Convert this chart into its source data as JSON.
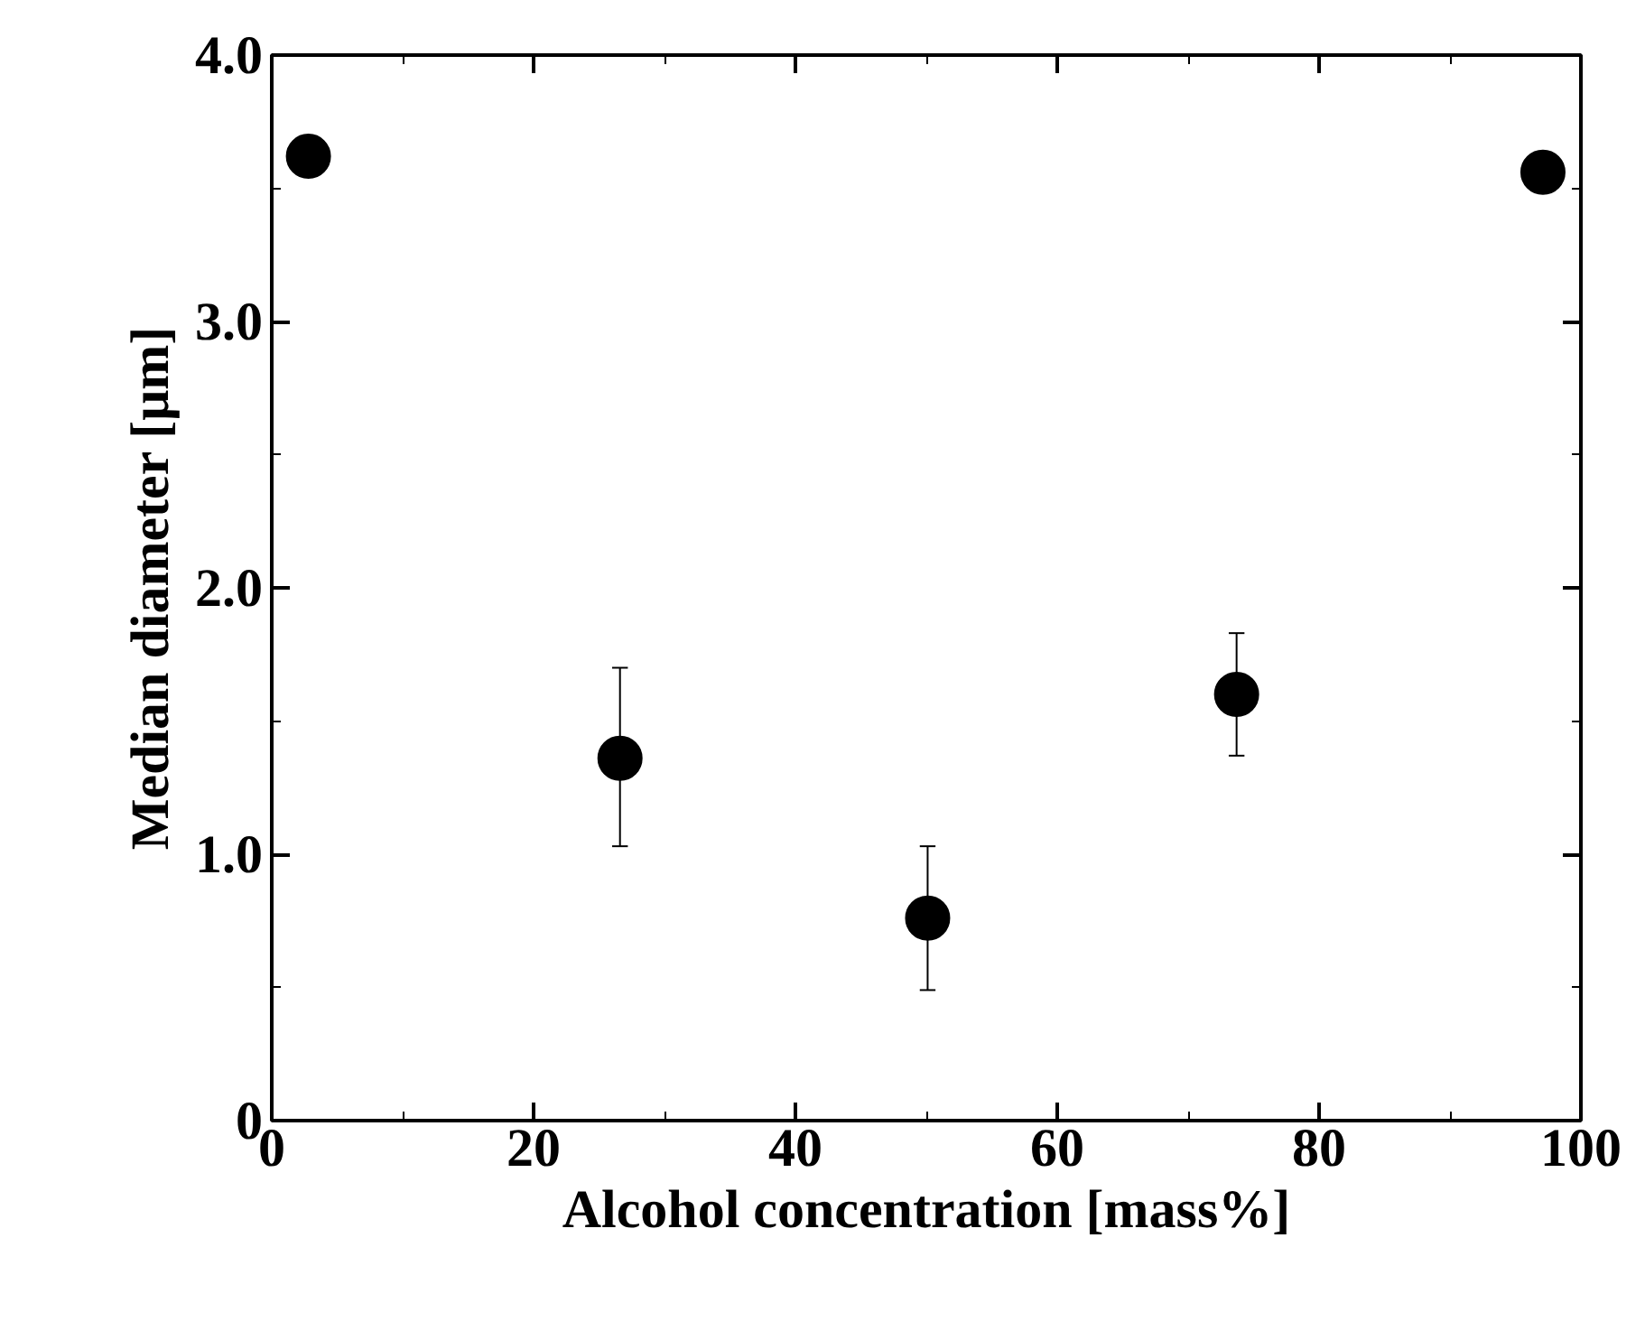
{
  "chart_data": {
    "type": "scatter",
    "xlabel": "Alcohol concentration [mass%]",
    "ylabel": "Median diameter [μm]",
    "x": [
      2.8,
      26.6,
      50.1,
      73.7,
      97.1
    ],
    "series": [
      {
        "color": "#000000",
        "values": [
          3.62,
          1.36,
          0.76,
          1.6,
          3.56
        ],
        "errors": [
          null,
          [
            1.03,
            1.7
          ],
          [
            0.49,
            1.03
          ],
          [
            1.37,
            1.83
          ],
          null
        ]
      }
    ],
    "marker": "circle",
    "grid": false,
    "xlim": [
      0,
      100
    ],
    "xticks": [
      0,
      20,
      40,
      60,
      80,
      100
    ],
    "ylim": [
      0,
      4
    ],
    "yticks": [
      0,
      {
        "value": 1,
        "label": "1.0"
      },
      {
        "value": 2,
        "label": "2.0"
      },
      {
        "value": 3,
        "label": "3.0"
      },
      {
        "value": 4,
        "label": "4.0"
      }
    ]
  }
}
